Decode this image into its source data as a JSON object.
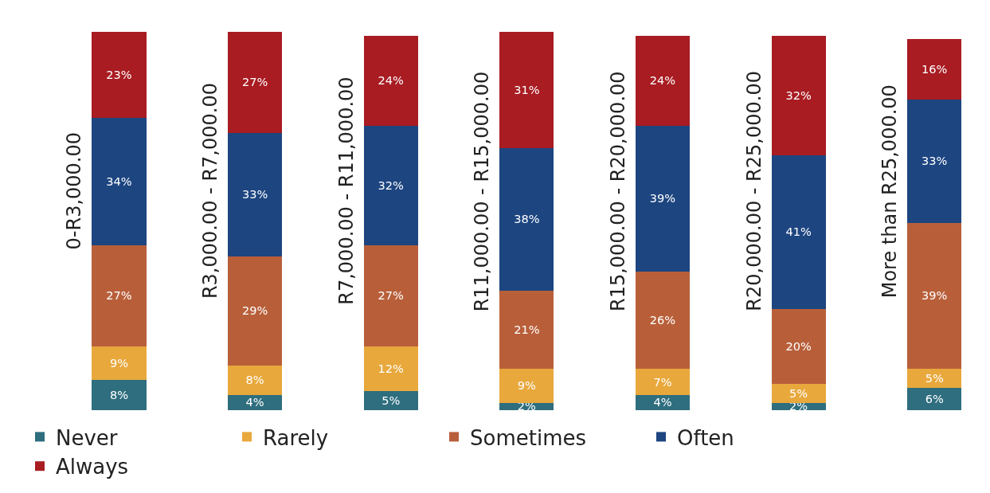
{
  "chart_data": {
    "type": "bar",
    "stacked": true,
    "legend": "bottom",
    "grid": false,
    "categories": [
      "0-R3,000.00",
      "R3,000.00 - R7,000.00",
      "R7,000.00 - R11,000.00",
      "R11,000.00 - R15,000.00",
      "R15,000.00 - R20,000.00",
      "R20,000.00 - R25,000.00",
      "More than R25,000.00"
    ],
    "series": [
      {
        "name": "Never",
        "color": "#2e6e7e",
        "values": [
          8,
          4,
          5,
          2,
          4,
          2,
          6
        ],
        "value_labels": [
          "8%",
          "4%",
          "5%",
          "2%",
          "4%",
          "2%",
          "6%"
        ]
      },
      {
        "name": "Rarely",
        "color": "#e8a83c",
        "values": [
          9,
          8,
          12,
          9,
          7,
          5,
          5
        ],
        "value_labels": [
          "9%",
          "8%",
          "12%",
          "9%",
          "7%",
          "5%",
          "5%"
        ]
      },
      {
        "name": "Sometimes",
        "color": "#b85f3a",
        "values": [
          27,
          29,
          27,
          21,
          26,
          20,
          39
        ],
        "value_labels": [
          "27%",
          "29%",
          "27%",
          "21%",
          "26%",
          "20%",
          "39%"
        ]
      },
      {
        "name": "Often",
        "color": "#1d4580",
        "values": [
          34,
          33,
          32,
          38,
          39,
          41,
          33
        ],
        "value_labels": [
          "34%",
          "33%",
          "32%",
          "38%",
          "39%",
          "41%",
          "33%"
        ]
      },
      {
        "name": "Always",
        "color": "#a81c22",
        "values": [
          23,
          27,
          24,
          31,
          24,
          32,
          16
        ],
        "value_labels": [
          "23%",
          "27%",
          "24%",
          "31%",
          "24%",
          "32%",
          "16%"
        ]
      }
    ]
  }
}
